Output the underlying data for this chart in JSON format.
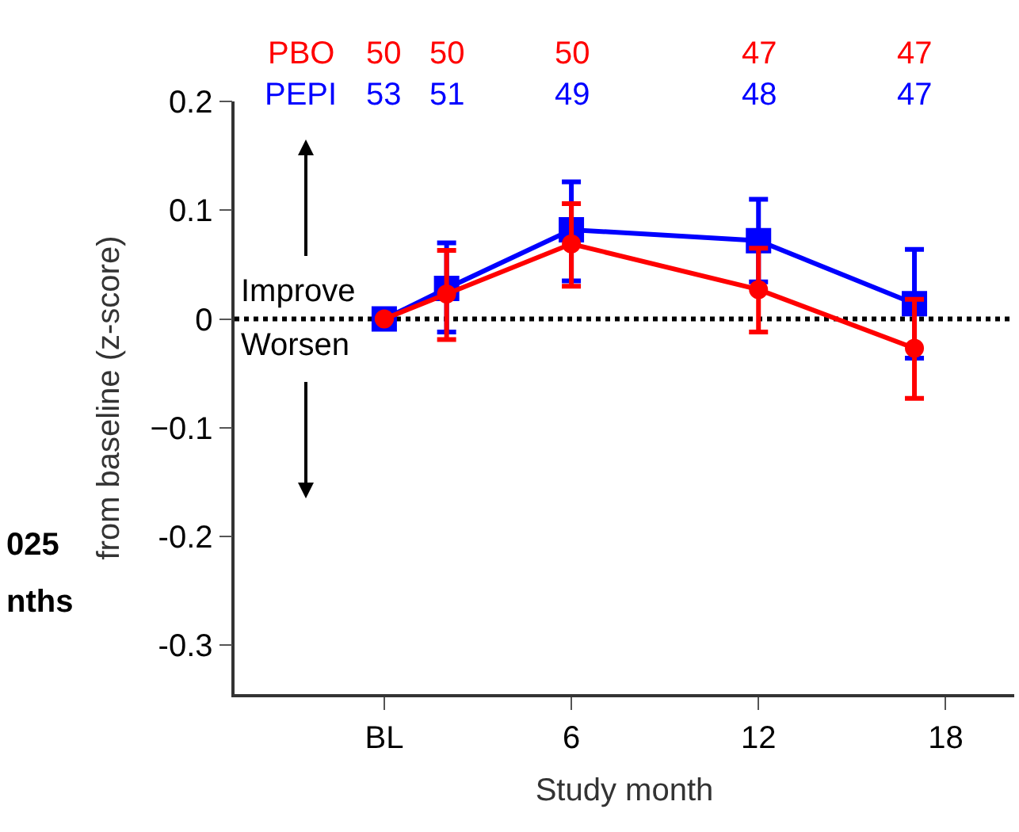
{
  "chart_data": {
    "type": "line",
    "xlabel": "Study month",
    "ylabel": "from baseline (z-score)",
    "x": [
      0,
      2,
      6,
      12,
      17
    ],
    "series": [
      {
        "name": "PBO",
        "color": "#ff0000",
        "marker": "circle",
        "values": [
          0,
          0.023,
          0.069,
          0.027,
          -0.027
        ],
        "errors": [
          null,
          [
            -0.019,
            0.063
          ],
          [
            0.03,
            0.106
          ],
          [
            -0.012,
            0.065
          ],
          [
            -0.073,
            0.018
          ]
        ]
      },
      {
        "name": "PEPI",
        "color": "#0000ff",
        "marker": "square",
        "values": [
          0,
          0.028,
          0.082,
          0.072,
          0.014
        ],
        "errors": [
          null,
          [
            -0.012,
            0.07
          ],
          [
            0.035,
            0.126
          ],
          [
            0.034,
            0.11
          ],
          [
            -0.036,
            0.064
          ]
        ]
      }
    ],
    "xlim": [
      -4.8,
      20.2
    ],
    "xticks": [
      {
        "value": 0,
        "label": "BL"
      },
      6,
      12,
      18
    ],
    "ylim": [
      -0.345,
      0.2
    ],
    "yticks": [
      {
        "value": 0.2,
        "label": "0.2"
      },
      {
        "value": 0.1,
        "label": "0.1"
      },
      0,
      {
        "value": -0.1,
        "label": "−0.1"
      },
      {
        "value": -0.2,
        "label": "-0.2"
      },
      {
        "value": -0.3,
        "label": "-0.3"
      }
    ],
    "ref_lines": [
      {
        "axis": "y",
        "value": 0,
        "color": "#000000",
        "line_style": "dotted"
      }
    ],
    "grid": false,
    "legend": false,
    "annotations": [
      "50",
      "50",
      "50",
      "47",
      "47",
      "53",
      "51",
      "49",
      "48",
      "47",
      "Improve",
      "Worsen",
      "025",
      "nths"
    ]
  }
}
